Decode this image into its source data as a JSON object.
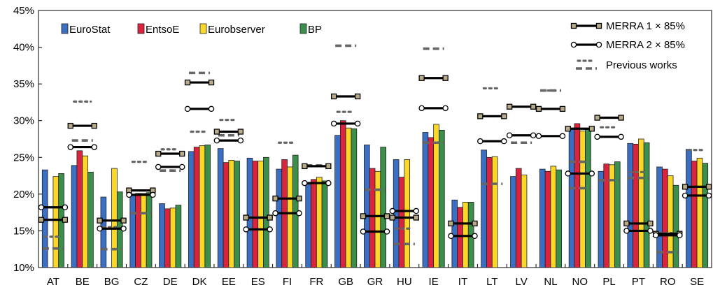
{
  "chart_data": {
    "type": "bar",
    "title": "",
    "xlabel": "",
    "ylabel": "",
    "ylim": [
      10,
      45
    ],
    "grid": false,
    "legend_placement": "top-left",
    "yticks": [
      "10%",
      "15%",
      "20%",
      "25%",
      "30%",
      "35%",
      "40%",
      "45%"
    ],
    "ytick_values": [
      10,
      15,
      20,
      25,
      30,
      35,
      40,
      45
    ],
    "categories": [
      "AT",
      "BE",
      "BG",
      "CZ",
      "DE",
      "DK",
      "EE",
      "ES",
      "FI",
      "FR",
      "GB",
      "GR",
      "HU",
      "IE",
      "IT",
      "LT",
      "LV",
      "NL",
      "NO",
      "PL",
      "PT",
      "RO",
      "SE"
    ],
    "series": [
      {
        "name": "EuroStat",
        "color": "#3a6fc4",
        "values": [
          23.3,
          23.9,
          19.6,
          20.0,
          18.7,
          25.8,
          26.2,
          24.9,
          23.4,
          21.3,
          28.0,
          26.7,
          24.7,
          28.4,
          19.2,
          26.0,
          22.4,
          23.4,
          29.0,
          23.1,
          26.9,
          23.7,
          26.1
        ]
      },
      {
        "name": "EntsoE",
        "color": "#d9233f",
        "values": [
          null,
          25.9,
          null,
          20.1,
          18.0,
          26.4,
          24.3,
          24.5,
          24.7,
          22.0,
          30.0,
          23.5,
          22.3,
          27.7,
          18.2,
          25.0,
          23.5,
          23.1,
          29.6,
          24.1,
          26.8,
          23.4,
          24.5
        ]
      },
      {
        "name": "Eurobserver",
        "color": "#fbd72a",
        "values": [
          22.4,
          25.2,
          23.5,
          20.1,
          18.1,
          26.6,
          24.6,
          24.5,
          23.7,
          22.3,
          29.0,
          23.1,
          24.7,
          29.5,
          18.9,
          25.1,
          22.6,
          23.8,
          28.6,
          24.0,
          27.5,
          22.5,
          24.9
        ]
      },
      {
        "name": "BP",
        "color": "#3b8f4a",
        "values": [
          22.8,
          23.0,
          20.3,
          20.2,
          18.5,
          26.7,
          24.5,
          25.0,
          25.3,
          21.8,
          28.9,
          26.4,
          null,
          28.7,
          18.9,
          null,
          null,
          23.3,
          29.0,
          24.4,
          27.0,
          21.2,
          24.2
        ]
      }
    ],
    "overlays": [
      {
        "name": "MERRA 1 × 85%",
        "marker": "square",
        "marker_color": "#b7ab88",
        "values": [
          16.5,
          29.3,
          16.4,
          20.5,
          25.5,
          35.2,
          28.5,
          16.8,
          19.4,
          23.8,
          33.3,
          17.0,
          16.8,
          35.8,
          16.0,
          30.6,
          31.9,
          31.6,
          28.9,
          30.4,
          16.0,
          14.6,
          21.0
        ]
      },
      {
        "name": "MERRA 2 × 85%",
        "marker": "circle",
        "marker_color": "#ffffff",
        "values": [
          18.2,
          26.4,
          15.3,
          19.9,
          23.7,
          31.6,
          27.3,
          15.2,
          17.4,
          21.5,
          29.6,
          14.9,
          17.7,
          31.7,
          14.3,
          27.2,
          28.0,
          27.9,
          22.8,
          27.8,
          15.0,
          14.4,
          19.8
        ]
      }
    ],
    "previous_works": {
      "name": "Previous works",
      "dotted": [
        14.2,
        32.6,
        15.5,
        24.4,
        26.1,
        28.5,
        30.1,
        null,
        27.0,
        null,
        31.2,
        null,
        15.3,
        null,
        null,
        34.4,
        null,
        34.1,
        null,
        29.1,
        23.0,
        14.7,
        26.0
      ],
      "dashed": [
        12.6,
        27.3,
        12.5,
        17.4,
        23.2,
        36.5,
        28.0,
        16.8,
        null,
        23.9,
        40.2,
        20.6,
        13.2,
        39.8,
        null,
        21.4,
        27.0,
        34.1,
        24.4,
        21.9,
        22.2,
        12.1,
        null
      ],
      "dashed_low": [
        null,
        null,
        null,
        null,
        null,
        null,
        null,
        null,
        null,
        null,
        null,
        null,
        null,
        27.0,
        null,
        null,
        null,
        null,
        20.8,
        null,
        null,
        null,
        null
      ]
    }
  }
}
